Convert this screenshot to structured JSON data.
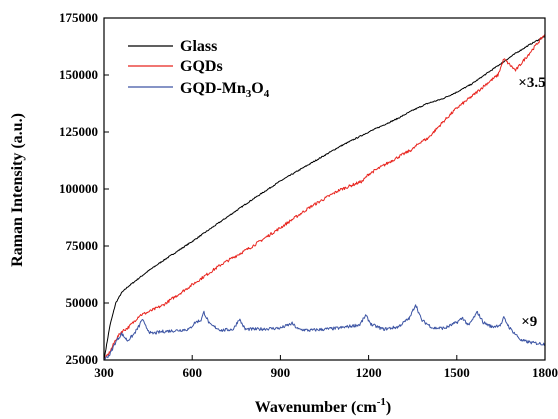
{
  "chart_data": {
    "type": "line",
    "xlabel_main": "Wavenumber (cm",
    "xlabel_sup": "-1",
    "xlabel_end": ")",
    "ylabel": "Raman Intensity (a.u.)",
    "xlim": [
      300,
      1800
    ],
    "ylim": [
      25000,
      175000
    ],
    "xticks": [
      300,
      600,
      900,
      1200,
      1500,
      1800
    ],
    "yticks": [
      25000,
      50000,
      75000,
      100000,
      125000,
      150000,
      175000
    ],
    "legend_position": "top-left",
    "annotations": [
      {
        "text": "×3.5",
        "x": 1750,
        "y": 147000
      },
      {
        "text": "×9",
        "x": 1760,
        "y": 42000
      }
    ],
    "series": [
      {
        "name": "Glass",
        "name_base": "Glass",
        "color": "#000000",
        "x": [
          300,
          320,
          340,
          360,
          380,
          400,
          450,
          500,
          600,
          700,
          800,
          900,
          1000,
          1100,
          1200,
          1300,
          1350,
          1400,
          1450,
          1500,
          1550,
          1600,
          1650,
          1700,
          1750,
          1800
        ],
        "y": [
          25000,
          40000,
          50000,
          54500,
          57000,
          59000,
          64000,
          68500,
          77000,
          86000,
          95000,
          103500,
          111000,
          118500,
          125000,
          131000,
          134500,
          137500,
          139500,
          142500,
          146000,
          150500,
          155000,
          159500,
          163500,
          167000
        ]
      },
      {
        "name": "GQDs",
        "name_base": "GQDs",
        "color": "#e8251f",
        "x": [
          300,
          320,
          340,
          360,
          380,
          400,
          420,
          450,
          500,
          600,
          700,
          800,
          900,
          1000,
          1100,
          1180,
          1200,
          1300,
          1350,
          1380,
          1400,
          1450,
          1500,
          1550,
          1600,
          1640,
          1660,
          1700,
          1750,
          1800
        ],
        "y": [
          25000,
          28500,
          34000,
          37500,
          39000,
          41500,
          44500,
          46000,
          49000,
          58000,
          67000,
          74500,
          83000,
          92000,
          99500,
          103500,
          106500,
          114000,
          117500,
          121000,
          122000,
          129000,
          135500,
          140500,
          146000,
          150000,
          157000,
          152000,
          160000,
          168000
        ]
      },
      {
        "name": "GQD-Mn3O4",
        "name_base": "GQD-Mn",
        "name_sub1": "3",
        "name_mid": "O",
        "name_sub2": "4",
        "color": "#3d55a4",
        "x": [
          300,
          320,
          340,
          360,
          380,
          400,
          420,
          430,
          440,
          460,
          500,
          550,
          590,
          610,
          630,
          640,
          660,
          700,
          740,
          760,
          780,
          820,
          900,
          940,
          960,
          1000,
          1100,
          1170,
          1190,
          1210,
          1250,
          1300,
          1340,
          1360,
          1380,
          1420,
          1460,
          1500,
          1520,
          1540,
          1570,
          1590,
          1620,
          1650,
          1660,
          1680,
          1720,
          1760,
          1800
        ],
        "y": [
          25000,
          27500,
          33000,
          36500,
          33500,
          36000,
          40000,
          43000,
          40000,
          36500,
          37500,
          38000,
          38500,
          41500,
          42500,
          46000,
          40500,
          38000,
          38500,
          43000,
          38500,
          38500,
          39000,
          41000,
          38500,
          38000,
          39000,
          40500,
          44500,
          40500,
          38500,
          39500,
          43500,
          49500,
          42500,
          39000,
          39000,
          41500,
          43500,
          40000,
          46000,
          41500,
          39500,
          40500,
          43500,
          39000,
          33500,
          32500,
          32000
        ]
      }
    ]
  }
}
